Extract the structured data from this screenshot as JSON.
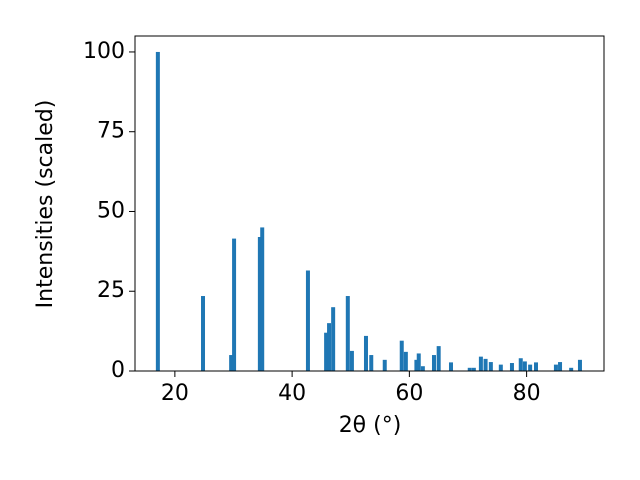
{
  "chart_data": {
    "type": "bar",
    "x_label": "2θ (°)",
    "y_label": "Intensities (scaled)",
    "x": [
      17.1,
      24.8,
      29.6,
      30.1,
      34.5,
      34.9,
      42.7,
      45.8,
      46.3,
      47.0,
      49.5,
      50.2,
      52.6,
      53.5,
      55.8,
      58.7,
      59.4,
      61.2,
      61.6,
      62.3,
      64.2,
      65.0,
      67.1,
      70.3,
      71.0,
      72.2,
      73.0,
      73.9,
      75.6,
      77.5,
      79.0,
      79.7,
      80.6,
      81.6,
      85.0,
      85.7,
      87.6,
      89.1
    ],
    "values": [
      100,
      23.5,
      5,
      41.5,
      42,
      45,
      31.5,
      12,
      15,
      20,
      23.5,
      6.3,
      11,
      5,
      3.5,
      9.5,
      6,
      3.5,
      5.5,
      1.5,
      5,
      7.8,
      2.7,
      1,
      1,
      4.5,
      3.8,
      2.8,
      2,
      2.5,
      4,
      3,
      2,
      2.7,
      2,
      2.8,
      1,
      3.5
    ],
    "color": "#1f77b4",
    "xlim": [
      13.2,
      93.2
    ],
    "xticks": [
      20,
      40,
      60,
      80
    ],
    "ylim": [
      0,
      105
    ],
    "yticks": [
      0,
      25,
      50,
      75,
      100
    ]
  }
}
